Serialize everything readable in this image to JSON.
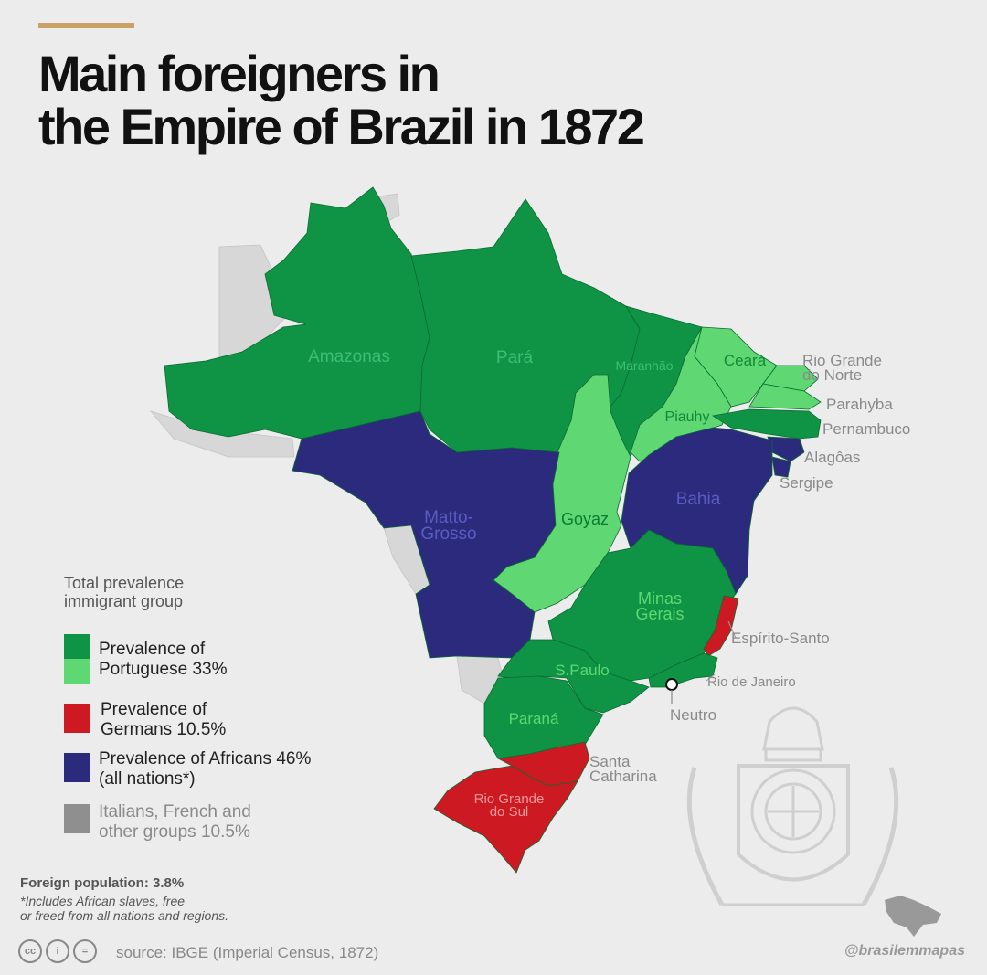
{
  "title_lines": [
    "Main foreigners in",
    "the Empire of Brazil in 1872"
  ],
  "colors": {
    "accent": "#c8a266",
    "portuguese_dark": "#0e9444",
    "portuguese_light": "#5fd873",
    "germans": "#cd1a22",
    "africans": "#2b2a7c",
    "others": "#d7d7d7",
    "others_legend": "#8f8f8f",
    "border": "#0c6a33"
  },
  "regions": [
    {
      "key": "amazonas",
      "name": "Amazonas",
      "group": "portuguese_dark"
    },
    {
      "key": "para",
      "name": "Pará",
      "group": "portuguese_dark"
    },
    {
      "key": "maranhao",
      "name": "Maranhão",
      "group": "portuguese_dark"
    },
    {
      "key": "ceara",
      "name": "Ceará",
      "group": "portuguese_light"
    },
    {
      "key": "piauhy",
      "name": "Piauhy",
      "group": "portuguese_light"
    },
    {
      "key": "rio_grande_do_norte",
      "name": "Rio Grande do Norte",
      "group": "portuguese_light"
    },
    {
      "key": "parahyba",
      "name": "Parahyba",
      "group": "portuguese_light"
    },
    {
      "key": "pernambuco",
      "name": "Pernambuco",
      "group": "portuguese_dark"
    },
    {
      "key": "alagoas",
      "name": "Alagôas",
      "group": "africans"
    },
    {
      "key": "sergipe",
      "name": "Sergipe",
      "group": "africans"
    },
    {
      "key": "bahia",
      "name": "Bahia",
      "group": "africans"
    },
    {
      "key": "matto_grosso",
      "name": "Matto-Grosso",
      "group": "africans"
    },
    {
      "key": "goyaz",
      "name": "Goyaz",
      "group": "portuguese_light"
    },
    {
      "key": "minas_gerais",
      "name": "Minas Gerais",
      "group": "portuguese_dark"
    },
    {
      "key": "espirito_santo",
      "name": "Espírito-Santo",
      "group": "germans"
    },
    {
      "key": "rio_de_janeiro",
      "name": "Rio de Janeiro",
      "group": "portuguese_dark"
    },
    {
      "key": "neutro",
      "name": "Neutro",
      "group": "portuguese_dark"
    },
    {
      "key": "sao_paulo",
      "name": "S.Paulo",
      "group": "portuguese_dark"
    },
    {
      "key": "parana",
      "name": "Paraná",
      "group": "portuguese_dark"
    },
    {
      "key": "santa_catharina",
      "name": "Santa Catharina",
      "group": "germans"
    },
    {
      "key": "rio_grande_do_sul",
      "name": "Rio Grande do Sul",
      "group": "germans"
    }
  ],
  "map_labels": [
    {
      "region": "amazonas",
      "lines": [
        "Amazonas"
      ],
      "color": "#3fbd73"
    },
    {
      "region": "para",
      "lines": [
        "Pará"
      ],
      "color": "#3fbd73"
    },
    {
      "region": "maranhao",
      "lines": [
        "Maranhão"
      ],
      "color": "#3fbd73"
    },
    {
      "region": "ceara",
      "lines": [
        "Ceará"
      ],
      "color": "#108a3a"
    },
    {
      "region": "piauhy",
      "lines": [
        "Piauhy"
      ],
      "color": "#108a3a"
    },
    {
      "region": "rio_grande_do_norte",
      "lines": [
        "Rio Grande",
        "do Norte"
      ],
      "color": "#8a8a8a"
    },
    {
      "region": "parahyba",
      "lines": [
        "Parahyba"
      ],
      "color": "#8a8a8a"
    },
    {
      "region": "pernambuco",
      "lines": [
        "Pernambuco"
      ],
      "color": "#8a8a8a"
    },
    {
      "region": "alagoas",
      "lines": [
        "Alagôas"
      ],
      "color": "#8a8a8a"
    },
    {
      "region": "sergipe",
      "lines": [
        "Sergipe"
      ],
      "color": "#8a8a8a"
    },
    {
      "region": "bahia",
      "lines": [
        "Bahia"
      ],
      "color": "#5b5bc4"
    },
    {
      "region": "matto_grosso",
      "lines": [
        "Matto-",
        "Grosso"
      ],
      "color": "#5b5bc4"
    },
    {
      "region": "goyaz",
      "lines": [
        "Goyaz"
      ],
      "color": "#0c7a34"
    },
    {
      "region": "minas_gerais",
      "lines": [
        "Minas",
        "Gerais"
      ],
      "color": "#5fd873"
    },
    {
      "region": "espirito_santo",
      "lines": [
        "Espírito-Santo"
      ],
      "color": "#8a8a8a"
    },
    {
      "region": "rio_de_janeiro",
      "lines": [
        "Rio de Janeiro"
      ],
      "color": "#8a8a8a"
    },
    {
      "region": "neutro",
      "lines": [
        "Neutro"
      ],
      "color": "#8a8a8a"
    },
    {
      "region": "sao_paulo",
      "lines": [
        "S.Paulo"
      ],
      "color": "#5fd873"
    },
    {
      "region": "parana",
      "lines": [
        "Paraná"
      ],
      "color": "#5fd873"
    },
    {
      "region": "santa_catharina",
      "lines": [
        "Santa",
        "Catharina"
      ],
      "color": "#8a8a8a"
    },
    {
      "region": "rio_grande_do_sul",
      "lines": [
        "Rio Grande",
        "do Sul"
      ],
      "color": "#f29999"
    }
  ],
  "legend": {
    "title_lines": [
      "Total prevalence",
      "immigrant group"
    ],
    "items": [
      {
        "key": "portuguese",
        "lines": [
          "Prevalence of",
          "Portuguese 33%"
        ],
        "share_percent": 33,
        "swatches": [
          "portuguese_dark",
          "portuguese_light"
        ]
      },
      {
        "key": "germans",
        "lines": [
          "Prevalence of",
          "Germans 10.5%"
        ],
        "share_percent": 10.5,
        "swatches": [
          "germans"
        ]
      },
      {
        "key": "africans",
        "lines": [
          "Prevalence of Africans 46%",
          "(all nations*)"
        ],
        "share_percent": 46,
        "swatches": [
          "africans"
        ]
      },
      {
        "key": "others",
        "lines": [
          "Italians,  French  and",
          "other groups 10.5%"
        ],
        "share_percent": 10.5,
        "swatches": [
          "others_legend"
        ]
      }
    ]
  },
  "footer": {
    "foreign_population": "Foreign population: 3.8%",
    "note_lines": [
      "*Includes African slaves, free",
      "or freed from all nations and regions."
    ],
    "license_icons": [
      "cc-icon",
      "by-icon",
      "nd-icon"
    ],
    "license_glyphs": [
      "cc",
      "i",
      "="
    ],
    "source": "source: IBGE (Imperial Census, 1872)",
    "handle": "@brasilemmapas"
  }
}
